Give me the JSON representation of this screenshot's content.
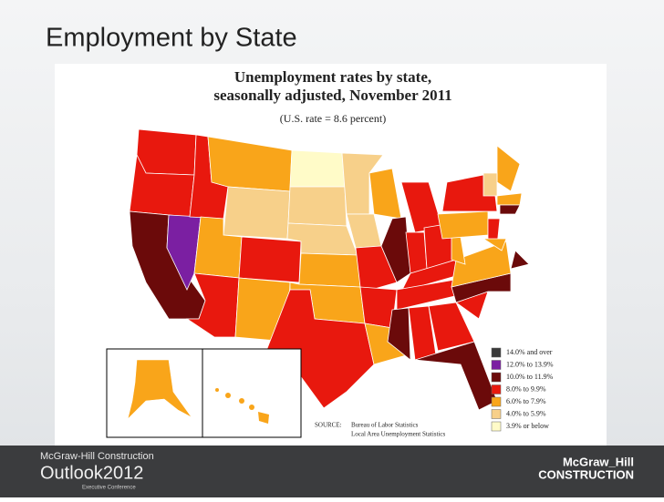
{
  "slide_title": "Employment by State",
  "map": {
    "title_lines": [
      "Unemployment rates by state,",
      "seasonally adjusted, November 2011"
    ],
    "subtitle": "(U.S. rate = 8.6 percent)",
    "legend": [
      {
        "label": "14.0% and over",
        "color": "#3a3a3a"
      },
      {
        "label": "12.0% to 13.9%",
        "color": "#7b1fa2"
      },
      {
        "label": "10.0% to 11.9%",
        "color": "#6b0a0a"
      },
      {
        "label": "8.0% to 9.9%",
        "color": "#e8180e"
      },
      {
        "label": "6.0% to 7.9%",
        "color": "#f9a51a"
      },
      {
        "label": "4.0% to 5.9%",
        "color": "#f7d08a"
      },
      {
        "label": "3.9% or below",
        "color": "#fffbc8"
      }
    ],
    "source_label": "SOURCE:",
    "source_lines": [
      "Bureau of Labor Statistics",
      "Local Area Unemployment Statistics"
    ]
  },
  "footer": {
    "brand": "McGraw-Hill Construction",
    "event": "Outlook2012",
    "event_sub": "Executive Conference",
    "logo_top": "McGraw_Hill",
    "logo_bottom": "CONSTRUCTION"
  }
}
